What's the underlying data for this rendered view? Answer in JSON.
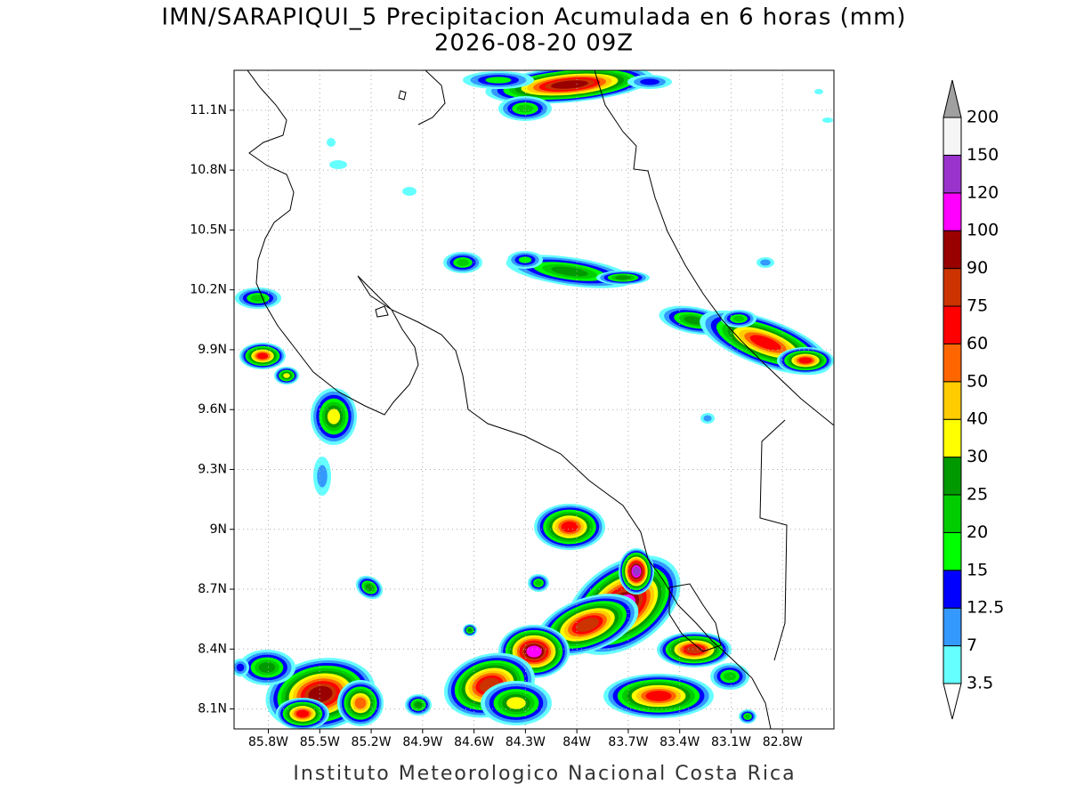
{
  "map": {
    "title": "IMN/SARAPIQUI_5 Precipitacion Acumulada en 6 horas (mm)",
    "subtitle": "2026-08-20 09Z",
    "xlim": [
      -86,
      -82.5
    ],
    "ylim": [
      8,
      11.3
    ],
    "xticks": [
      {
        "value": -85.8,
        "label": "85.8W"
      },
      {
        "value": -85.5,
        "label": "85.5W"
      },
      {
        "value": -85.2,
        "label": "85.2W"
      },
      {
        "value": -84.9,
        "label": "84.9W"
      },
      {
        "value": -84.6,
        "label": "84.6W"
      },
      {
        "value": -84.3,
        "label": "84.3W"
      },
      {
        "value": -84,
        "label": "84W"
      },
      {
        "value": -83.7,
        "label": "83.7W"
      },
      {
        "value": -83.4,
        "label": "83.4W"
      },
      {
        "value": -83.1,
        "label": "83.1W"
      },
      {
        "value": -82.8,
        "label": "82.8W"
      }
    ],
    "yticks": [
      {
        "value": 8.1,
        "label": "8.1N"
      },
      {
        "value": 8.4,
        "label": "8.4N"
      },
      {
        "value": 8.7,
        "label": "8.7N"
      },
      {
        "value": 9,
        "label": "9N"
      },
      {
        "value": 9.3,
        "label": "9.3N"
      },
      {
        "value": 9.6,
        "label": "9.6N"
      },
      {
        "value": 9.9,
        "label": "9.9N"
      },
      {
        "value": 10.2,
        "label": "10.2N"
      },
      {
        "value": 10.5,
        "label": "10.5N"
      },
      {
        "value": 10.8,
        "label": "10.8N"
      },
      {
        "value": 11.1,
        "label": "11.1N"
      }
    ],
    "grid": true,
    "colorbar": {
      "levels": [
        3.5,
        7,
        12.5,
        15,
        20,
        25,
        30,
        40,
        50,
        60,
        75,
        90,
        100,
        120,
        150,
        200
      ],
      "colors": [
        "#66ffff",
        "#3399ff",
        "#0000ff",
        "#00ff00",
        "#00cc00",
        "#009900",
        "#ffff00",
        "#ffcc00",
        "#ff6600",
        "#ff0000",
        "#cc3300",
        "#990000",
        "#ff00ff",
        "#9933cc",
        "#f5f5f5"
      ],
      "under_color": "#ffffff",
      "over_color": "#a0a0a0"
    },
    "footer": "Instituto Meteorologico Nacional Costa Rica"
  }
}
